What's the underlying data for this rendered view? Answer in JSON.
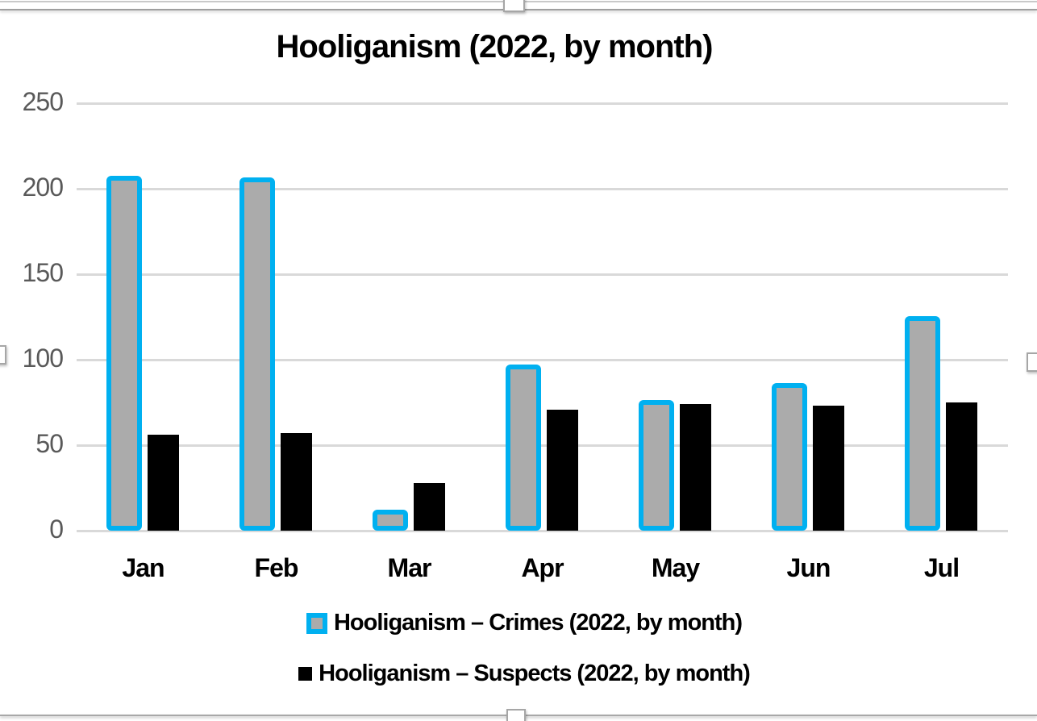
{
  "chart_data": {
    "type": "bar",
    "title": "Hooliganism (2022, by month)",
    "categories": [
      "Jan",
      "Feb",
      "Mar",
      "Apr",
      "May",
      "Jun",
      "Jul"
    ],
    "series": [
      {
        "name": "Hooliganism – Crimes (2022, by month)",
        "values": [
          206,
          205,
          11,
          96,
          75,
          85,
          124
        ],
        "fill": "#ababab",
        "border": "#00b0f0"
      },
      {
        "name": "Hooliganism – Suspects (2022, by month)",
        "values": [
          56,
          57,
          28,
          71,
          74,
          73,
          75
        ],
        "fill": "#000000",
        "border": null
      }
    ],
    "ylim": [
      0,
      250
    ],
    "yticks": [
      0,
      50,
      100,
      150,
      200,
      250
    ],
    "grid": "horizontal-only",
    "legend_position": "bottom",
    "xlabel": "",
    "ylabel": "",
    "colors": {
      "gridline": "#d9d9d9",
      "axis_label_text": "#595959",
      "title_text": "#000000",
      "background": "#ffffff"
    }
  },
  "chart_object": {
    "state": "selected",
    "handles": [
      "top-center",
      "bottom-center",
      "left-middle",
      "right-middle"
    ]
  }
}
